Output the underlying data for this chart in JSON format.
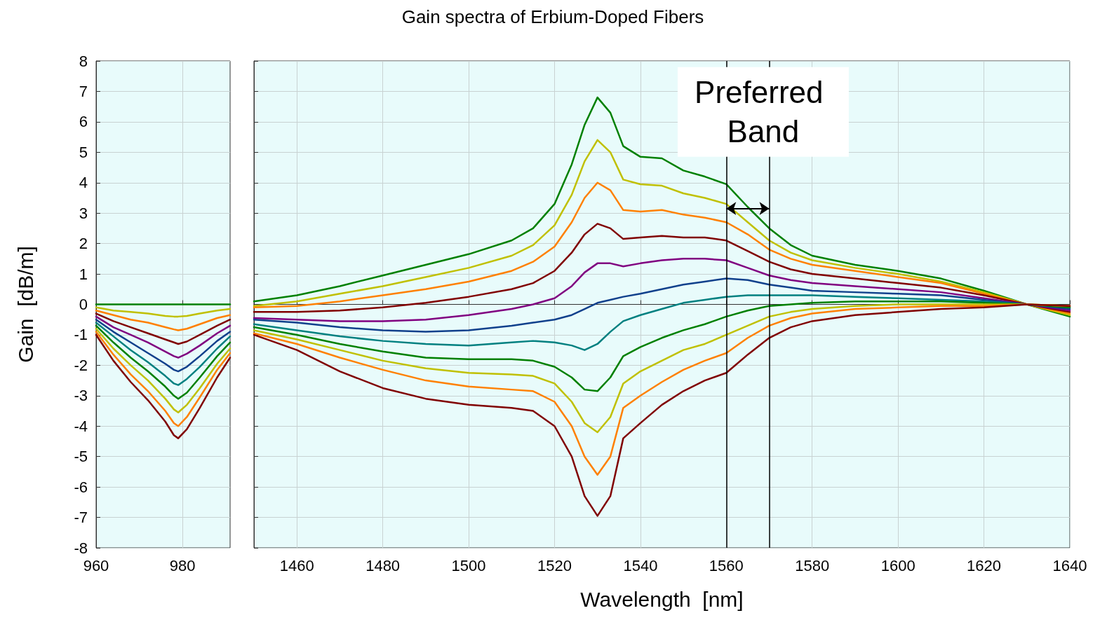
{
  "chart_data": [
    {
      "type": "line",
      "ylabel": "Gain  [dB/m]",
      "x": [
        960,
        964,
        968,
        972,
        976,
        978,
        979,
        981,
        984,
        988,
        991
      ],
      "xlim": [
        960,
        991
      ],
      "xticks": [
        960,
        980
      ],
      "ylim": [
        -8,
        8
      ],
      "yticks": [
        -8,
        -7,
        -6,
        -5,
        -4,
        -3,
        -2,
        -1,
        0,
        1,
        2,
        3,
        4,
        5,
        6,
        7,
        8
      ],
      "grid": true,
      "marker": "none",
      "line_style": "solid",
      "series": [
        {
          "color": "#008000",
          "values": [
            0,
            0,
            0,
            0,
            0,
            0,
            0,
            0,
            0,
            0,
            0
          ]
        },
        {
          "color": "#c0c000",
          "values": [
            -0.1,
            -0.2,
            -0.25,
            -0.3,
            -0.38,
            -0.4,
            -0.4,
            -0.38,
            -0.3,
            -0.2,
            -0.15
          ]
        },
        {
          "color": "#ff8000",
          "values": [
            -0.2,
            -0.35,
            -0.5,
            -0.6,
            -0.75,
            -0.82,
            -0.85,
            -0.8,
            -0.65,
            -0.45,
            -0.35
          ]
        },
        {
          "color": "#800000",
          "values": [
            -0.3,
            -0.55,
            -0.75,
            -0.95,
            -1.15,
            -1.25,
            -1.3,
            -1.22,
            -1.0,
            -0.7,
            -0.5
          ]
        },
        {
          "color": "#800080",
          "values": [
            -0.4,
            -0.75,
            -1.0,
            -1.25,
            -1.55,
            -1.7,
            -1.75,
            -1.62,
            -1.35,
            -0.95,
            -0.7
          ]
        },
        {
          "color": "#10408c",
          "values": [
            -0.5,
            -0.9,
            -1.25,
            -1.6,
            -1.95,
            -2.15,
            -2.2,
            -2.05,
            -1.7,
            -1.2,
            -0.9
          ]
        },
        {
          "color": "#008080",
          "values": [
            -0.6,
            -1.05,
            -1.5,
            -1.9,
            -2.35,
            -2.6,
            -2.65,
            -2.45,
            -2.05,
            -1.45,
            -1.05
          ]
        },
        {
          "color": "#008000",
          "values": [
            -0.7,
            -1.25,
            -1.75,
            -2.2,
            -2.7,
            -3.0,
            -3.1,
            -2.9,
            -2.4,
            -1.7,
            -1.25
          ]
        },
        {
          "color": "#c0c000",
          "values": [
            -0.8,
            -1.45,
            -2.0,
            -2.5,
            -3.1,
            -3.45,
            -3.55,
            -3.3,
            -2.75,
            -1.95,
            -1.45
          ]
        },
        {
          "color": "#ff8000",
          "values": [
            -0.9,
            -1.65,
            -2.3,
            -2.85,
            -3.5,
            -3.9,
            -4.0,
            -3.7,
            -3.05,
            -2.15,
            -1.6
          ]
        },
        {
          "color": "#800000",
          "values": [
            -1.0,
            -1.85,
            -2.55,
            -3.15,
            -3.85,
            -4.3,
            -4.4,
            -4.1,
            -3.4,
            -2.4,
            -1.75
          ]
        }
      ]
    },
    {
      "type": "line",
      "title": "Gain spectra of Erbium-Doped Fibers",
      "xlabel": "Wavelength  [nm]",
      "x": [
        1450,
        1460,
        1470,
        1480,
        1490,
        1500,
        1510,
        1515,
        1520,
        1524,
        1527,
        1530,
        1533,
        1536,
        1540,
        1545,
        1550,
        1555,
        1560,
        1565,
        1570,
        1575,
        1580,
        1590,
        1600,
        1610,
        1620,
        1630,
        1640
      ],
      "xlim": [
        1450,
        1640
      ],
      "xticks": [
        1460,
        1480,
        1500,
        1520,
        1540,
        1560,
        1580,
        1600,
        1620,
        1640
      ],
      "ylim": [
        -8,
        8
      ],
      "yticks": [
        -8,
        -7,
        -6,
        -5,
        -4,
        -3,
        -2,
        -1,
        0,
        1,
        2,
        3,
        4,
        5,
        6,
        7,
        8
      ],
      "tick_labels": "x",
      "grid": true,
      "marker": "none",
      "line_style": "solid",
      "ref_lines": [
        {
          "axis": "x",
          "value": 1560,
          "color": "#000000"
        },
        {
          "axis": "x",
          "value": 1570,
          "color": "#000000"
        }
      ],
      "annotations": [
        {
          "text": "Preferred Band",
          "x": 1565,
          "y": 3.15
        }
      ],
      "series": [
        {
          "color": "#008000",
          "values": [
            0.1,
            0.3,
            0.6,
            0.95,
            1.3,
            1.65,
            2.1,
            2.5,
            3.3,
            4.6,
            5.9,
            6.8,
            6.3,
            5.2,
            4.85,
            4.8,
            4.4,
            4.2,
            3.95,
            3.2,
            2.5,
            1.95,
            1.6,
            1.3,
            1.1,
            0.85,
            0.45,
            0,
            -0.4
          ]
        },
        {
          "color": "#c0c000",
          "values": [
            -0.05,
            0.1,
            0.35,
            0.6,
            0.9,
            1.2,
            1.6,
            1.95,
            2.6,
            3.6,
            4.7,
            5.4,
            5.0,
            4.1,
            3.95,
            3.9,
            3.65,
            3.5,
            3.3,
            2.7,
            2.1,
            1.7,
            1.45,
            1.2,
            1.0,
            0.75,
            0.4,
            0,
            -0.35
          ]
        },
        {
          "color": "#ff8000",
          "values": [
            -0.1,
            -0.05,
            0.1,
            0.3,
            0.5,
            0.75,
            1.1,
            1.4,
            1.9,
            2.7,
            3.5,
            4.0,
            3.75,
            3.1,
            3.05,
            3.1,
            2.95,
            2.85,
            2.7,
            2.3,
            1.8,
            1.5,
            1.3,
            1.1,
            0.9,
            0.7,
            0.35,
            0,
            -0.3
          ]
        },
        {
          "color": "#800000",
          "values": [
            -0.25,
            -0.25,
            -0.2,
            -0.1,
            0.05,
            0.25,
            0.5,
            0.7,
            1.1,
            1.7,
            2.3,
            2.65,
            2.5,
            2.15,
            2.2,
            2.25,
            2.2,
            2.2,
            2.1,
            1.75,
            1.4,
            1.15,
            1.0,
            0.85,
            0.7,
            0.55,
            0.3,
            0,
            -0.25
          ]
        },
        {
          "color": "#800080",
          "values": [
            -0.45,
            -0.5,
            -0.55,
            -0.55,
            -0.5,
            -0.35,
            -0.15,
            0,
            0.2,
            0.6,
            1.05,
            1.35,
            1.35,
            1.25,
            1.35,
            1.45,
            1.5,
            1.5,
            1.45,
            1.2,
            0.95,
            0.8,
            0.7,
            0.6,
            0.5,
            0.4,
            0.2,
            0,
            -0.2
          ]
        },
        {
          "color": "#10408c",
          "values": [
            -0.5,
            -0.6,
            -0.75,
            -0.85,
            -0.9,
            -0.85,
            -0.7,
            -0.6,
            -0.5,
            -0.35,
            -0.15,
            0.05,
            0.15,
            0.25,
            0.35,
            0.5,
            0.65,
            0.75,
            0.85,
            0.8,
            0.65,
            0.55,
            0.45,
            0.4,
            0.35,
            0.3,
            0.15,
            0,
            -0.15
          ]
        },
        {
          "color": "#008080",
          "values": [
            -0.65,
            -0.85,
            -1.05,
            -1.2,
            -1.3,
            -1.35,
            -1.25,
            -1.2,
            -1.25,
            -1.35,
            -1.5,
            -1.3,
            -0.9,
            -0.55,
            -0.35,
            -0.15,
            0.05,
            0.15,
            0.25,
            0.3,
            0.3,
            0.3,
            0.3,
            0.25,
            0.2,
            0.15,
            0.1,
            0,
            -0.1
          ]
        },
        {
          "color": "#008000",
          "values": [
            -0.75,
            -1.0,
            -1.3,
            -1.55,
            -1.75,
            -1.8,
            -1.8,
            -1.85,
            -2.05,
            -2.4,
            -2.8,
            -2.85,
            -2.4,
            -1.7,
            -1.4,
            -1.1,
            -0.85,
            -0.65,
            -0.4,
            -0.2,
            -0.05,
            0.0,
            0.05,
            0.1,
            0.1,
            0.1,
            0.05,
            0,
            -0.1
          ]
        },
        {
          "color": "#c0c000",
          "values": [
            -0.85,
            -1.15,
            -1.5,
            -1.85,
            -2.1,
            -2.25,
            -2.3,
            -2.35,
            -2.6,
            -3.2,
            -3.9,
            -4.2,
            -3.7,
            -2.6,
            -2.2,
            -1.85,
            -1.5,
            -1.3,
            -1.0,
            -0.7,
            -0.4,
            -0.25,
            -0.15,
            -0.05,
            0,
            0,
            0,
            0,
            -0.05
          ]
        },
        {
          "color": "#ff8000",
          "values": [
            -0.95,
            -1.3,
            -1.75,
            -2.15,
            -2.5,
            -2.7,
            -2.8,
            -2.85,
            -3.2,
            -4.0,
            -5.0,
            -5.6,
            -5.0,
            -3.4,
            -3.0,
            -2.55,
            -2.15,
            -1.85,
            -1.6,
            -1.1,
            -0.7,
            -0.45,
            -0.3,
            -0.15,
            -0.1,
            -0.05,
            -0.05,
            0,
            -0.05
          ]
        },
        {
          "color": "#800000",
          "values": [
            -1.0,
            -1.5,
            -2.2,
            -2.75,
            -3.1,
            -3.3,
            -3.4,
            -3.5,
            -4.0,
            -5.0,
            -6.3,
            -6.95,
            -6.3,
            -4.4,
            -3.9,
            -3.3,
            -2.85,
            -2.5,
            -2.25,
            -1.65,
            -1.1,
            -0.75,
            -0.55,
            -0.35,
            -0.25,
            -0.15,
            -0.1,
            0,
            -0.05
          ]
        }
      ]
    }
  ]
}
